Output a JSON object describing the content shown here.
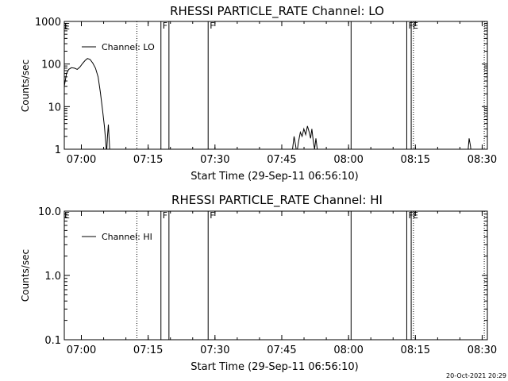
{
  "footer": {
    "timestamp": "20-Oct-2021 20:29"
  },
  "chart_data": [
    {
      "type": "line",
      "title": "RHESSI PARTICLE_RATE Channel: LO",
      "xlabel": "Start Time (29-Sep-11 06:56:10)",
      "ylabel": "Counts/sec",
      "yscale": "log",
      "ylim": [
        1,
        1000
      ],
      "xlim_minutes_after_0656": [
        0,
        95
      ],
      "x_ticks": [
        "07:00",
        "07:15",
        "07:30",
        "07:45",
        "08:00",
        "08:15",
        "08:30"
      ],
      "y_ticks": [
        "1",
        "10",
        "100",
        "1000"
      ],
      "legend": {
        "label": "Channel: LO",
        "placement": "top-left"
      },
      "grid": false,
      "series": [
        {
          "name": "Channel: LO",
          "segments": [
            [
              [
                0.0,
                30
              ],
              [
                0.5,
                60
              ],
              [
                1.0,
                75
              ],
              [
                1.6,
                82
              ],
              [
                2.3,
                80
              ],
              [
                2.9,
                75
              ],
              [
                3.5,
                85
              ],
              [
                4.1,
                103
              ],
              [
                4.7,
                122
              ],
              [
                5.2,
                135
              ],
              [
                5.8,
                128
              ],
              [
                6.4,
                105
              ],
              [
                7.0,
                80
              ],
              [
                7.6,
                50
              ],
              [
                8.1,
                22
              ],
              [
                8.6,
                8
              ],
              [
                9.0,
                3.5
              ],
              [
                9.3,
                1.5
              ],
              [
                9.5,
                0.8
              ],
              [
                9.7,
                2.0
              ],
              [
                9.9,
                3.8
              ],
              [
                10.1,
                1.5
              ],
              [
                10.3,
                0.6
              ]
            ],
            [
              [
                51.0,
                0.6
              ],
              [
                51.3,
                1.1
              ],
              [
                51.6,
                2.0
              ],
              [
                51.9,
                1.3
              ],
              [
                52.2,
                0.8
              ],
              [
                52.6,
                1.5
              ],
              [
                53.0,
                2.5
              ],
              [
                53.4,
                2.0
              ],
              [
                53.8,
                3.0
              ],
              [
                54.2,
                2.2
              ],
              [
                54.6,
                3.5
              ],
              [
                55.0,
                2.5
              ],
              [
                55.3,
                1.8
              ],
              [
                55.6,
                3.0
              ],
              [
                55.9,
                1.6
              ],
              [
                56.2,
                1.0
              ],
              [
                56.5,
                1.8
              ],
              [
                56.8,
                1.0
              ],
              [
                57.1,
                0.6
              ]
            ],
            [
              [
                90.5,
                0.6
              ],
              [
                90.9,
                1.8
              ],
              [
                91.2,
                1.2
              ],
              [
                91.5,
                0.6
              ]
            ]
          ]
        }
      ],
      "annotations": [
        {
          "type": "dotted-vline",
          "x_time": "07:13",
          "x_minutes": 16.3
        },
        {
          "type": "solid-vline",
          "x_time": "07:18",
          "x_minutes": 21.7,
          "label": "F"
        },
        {
          "type": "solid-vline",
          "x_time": "07:20",
          "x_minutes": 23.5
        },
        {
          "type": "solid-vline",
          "x_time": "07:29",
          "x_minutes": 32.3,
          "label": "F"
        },
        {
          "type": "solid-vline",
          "x_time": "08:00",
          "x_minutes": 64.4
        },
        {
          "type": "solid-vline",
          "x_time": "08:13",
          "x_minutes": 76.9,
          "label": "F"
        },
        {
          "type": "solid-vline",
          "x_time": "08:14",
          "x_minutes": 77.9,
          "label": "E"
        },
        {
          "type": "dotted-vline",
          "x_time": "08:14",
          "x_minutes": 78.4
        },
        {
          "type": "dotted-vline",
          "x_time": "08:30",
          "x_minutes": 94.3
        }
      ],
      "corner_label": "E"
    },
    {
      "type": "line",
      "title": "RHESSI PARTICLE_RATE Channel: HI",
      "xlabel": "Start Time (29-Sep-11 06:56:10)",
      "ylabel": "Counts/sec",
      "yscale": "log",
      "ylim": [
        0.1,
        10.0
      ],
      "xlim_minutes_after_0656": [
        0,
        95
      ],
      "x_ticks": [
        "07:00",
        "07:15",
        "07:30",
        "07:45",
        "08:00",
        "08:15",
        "08:30"
      ],
      "y_ticks": [
        "0.1",
        "1.0",
        "10.0"
      ],
      "legend": {
        "label": "Channel: HI",
        "placement": "top-left"
      },
      "grid": false,
      "series": [
        {
          "name": "Channel: HI",
          "segments": []
        }
      ],
      "annotations": [
        {
          "type": "dotted-vline",
          "x_time": "07:13",
          "x_minutes": 16.3
        },
        {
          "type": "solid-vline",
          "x_time": "07:18",
          "x_minutes": 21.7,
          "label": "F"
        },
        {
          "type": "solid-vline",
          "x_time": "07:20",
          "x_minutes": 23.5
        },
        {
          "type": "solid-vline",
          "x_time": "07:29",
          "x_minutes": 32.3,
          "label": "F"
        },
        {
          "type": "solid-vline",
          "x_time": "08:00",
          "x_minutes": 64.4
        },
        {
          "type": "solid-vline",
          "x_time": "08:13",
          "x_minutes": 76.9,
          "label": "F"
        },
        {
          "type": "solid-vline",
          "x_time": "08:14",
          "x_minutes": 77.9,
          "label": "E"
        },
        {
          "type": "dotted-vline",
          "x_time": "08:14",
          "x_minutes": 78.4
        },
        {
          "type": "dotted-vline",
          "x_time": "08:30",
          "x_minutes": 94.3
        }
      ],
      "corner_label": "E"
    }
  ]
}
